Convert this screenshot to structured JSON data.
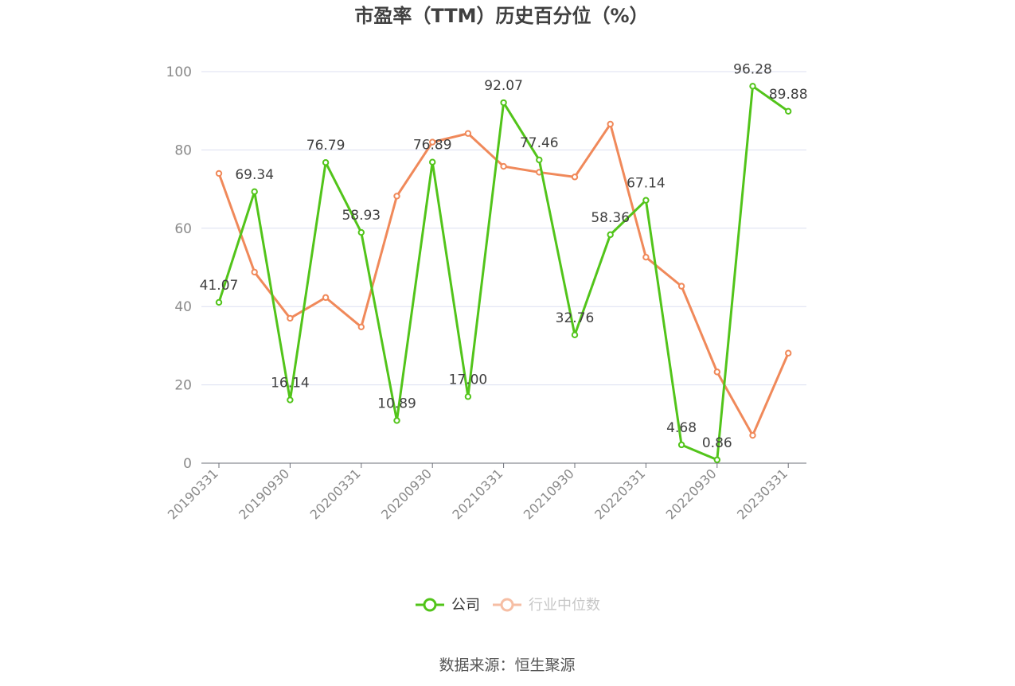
{
  "chart_data": {
    "type": "line",
    "title": "市盈率（TTM）历史百分位（%）",
    "xlabel": "",
    "ylabel": "",
    "ylim": [
      0,
      100
    ],
    "yticks": [
      0,
      20,
      40,
      60,
      80,
      100
    ],
    "x": [
      "20190331",
      "20190630",
      "20190930",
      "20191231",
      "20200331",
      "20200630",
      "20200930",
      "20201231",
      "20210331",
      "20210630",
      "20210930",
      "20211231",
      "20220331",
      "20220630",
      "20220930",
      "20221231",
      "20230331"
    ],
    "x_tick_labels": [
      "20190331",
      "20190930",
      "20200331",
      "20200930",
      "20210331",
      "20210930",
      "20220331",
      "20220930",
      "20230331"
    ],
    "grid": true,
    "legend_position": "bottom",
    "series": [
      {
        "name": "公司",
        "color": "#52c41a",
        "show_labels": true,
        "values": [
          41.07,
          69.34,
          16.14,
          76.79,
          58.93,
          10.89,
          76.89,
          17.0,
          92.07,
          77.46,
          32.76,
          58.36,
          67.14,
          4.68,
          0.86,
          96.28,
          89.88
        ],
        "value_labels": [
          "41.07",
          "69.34",
          "16.14",
          "76.79",
          "58.93",
          "10.89",
          "76.89",
          "17.00",
          "92.07",
          "77.46",
          "32.76",
          "58.36",
          "67.14",
          "4.68",
          "0.86",
          "96.28",
          "89.88"
        ]
      },
      {
        "name": "行业中位数",
        "color": "#f0895a",
        "show_labels": false,
        "values": [
          74.0,
          48.8,
          37.0,
          42.3,
          34.8,
          68.2,
          82.0,
          84.2,
          75.8,
          74.3,
          73.1,
          86.6,
          52.6,
          45.2,
          23.3,
          7.1,
          28.1
        ]
      }
    ]
  },
  "source": "数据来源：恒生聚源"
}
